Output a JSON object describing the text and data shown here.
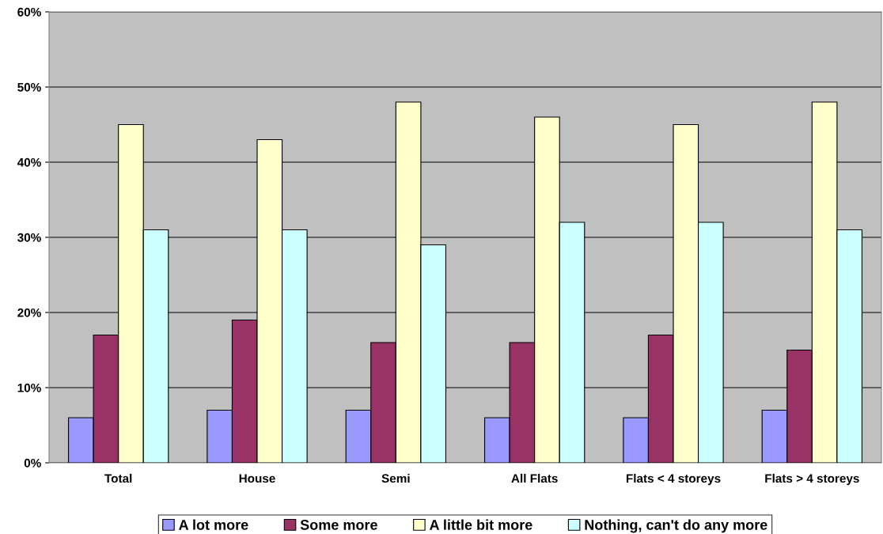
{
  "chart_data": {
    "type": "bar",
    "categories": [
      "Total",
      "House",
      "Semi",
      "All Flats",
      "Flats < 4 storeys",
      "Flats > 4 storeys"
    ],
    "series": [
      {
        "name": "A lot more",
        "color": "#9999ff",
        "values": [
          6,
          7,
          7,
          6,
          6,
          7
        ]
      },
      {
        "name": "Some more",
        "color": "#993366",
        "values": [
          17,
          19,
          16,
          16,
          17,
          15
        ]
      },
      {
        "name": "A little bit more",
        "color": "#ffffcc",
        "values": [
          45,
          43,
          48,
          46,
          45,
          48
        ]
      },
      {
        "name": "Nothing, can't do any more",
        "color": "#ccffff",
        "values": [
          31,
          31,
          29,
          32,
          32,
          31
        ]
      }
    ],
    "ylim": [
      0,
      60
    ],
    "yticks": [
      {
        "value": 0,
        "label": "0%"
      },
      {
        "value": 10,
        "label": "10%"
      },
      {
        "value": 20,
        "label": "20%"
      },
      {
        "value": 30,
        "label": "30%"
      },
      {
        "value": 40,
        "label": "40%"
      },
      {
        "value": 50,
        "label": "50%"
      },
      {
        "value": 60,
        "label": "60%"
      }
    ],
    "grid": "y",
    "legend": "bottom"
  }
}
